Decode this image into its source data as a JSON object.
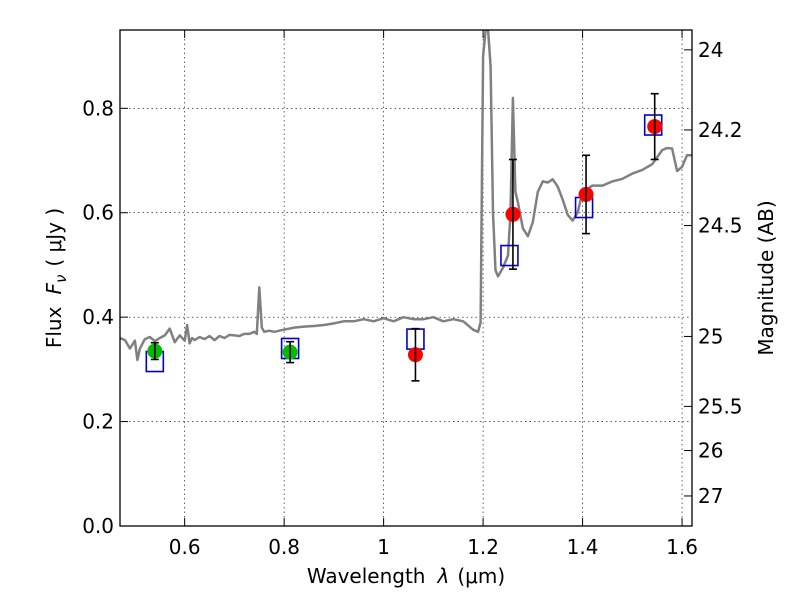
{
  "chart_data": {
    "type": "scatter",
    "title": "",
    "xlabel_text": "Wavelength",
    "xlabel_symbol": "λ",
    "xlabel_unit": "(μm)",
    "ylabel_text": "Flux",
    "ylabel_symbol": "F",
    "ylabel_subscript": "ν",
    "ylabel_unit": "( μJy )",
    "y2label": "Magnitude (AB)",
    "xlim": [
      0.47,
      1.62
    ],
    "ylim": [
      0.0,
      0.95
    ],
    "grid": true,
    "x_ticks": [
      0.6,
      0.8,
      1.0,
      1.2,
      1.4,
      1.6
    ],
    "x_tick_labels": [
      "0.6",
      "0.8",
      "1",
      "1.2",
      "1.4",
      "1.6"
    ],
    "y_ticks": [
      0.0,
      0.2,
      0.4,
      0.6,
      0.8
    ],
    "y_tick_labels": [
      "0.0",
      "0.2",
      "0.4",
      "0.6",
      "0.8"
    ],
    "mag_ticks": [
      24,
      24.2,
      24.5,
      25,
      25.5,
      26,
      27
    ],
    "mag_tick_labels": [
      "24",
      "24.2",
      "24.5",
      "25",
      "25.5",
      "26",
      "27"
    ],
    "colors": {
      "spectrum": "#808080",
      "model": "#0000cc",
      "green_obs": "#00bb00",
      "red_obs": "#ff0000",
      "errorbar": "#000000"
    },
    "series": [
      {
        "name": "template_spectrum",
        "kind": "line",
        "x": [
          0.47,
          0.48,
          0.49,
          0.5,
          0.505,
          0.51,
          0.52,
          0.53,
          0.54,
          0.55,
          0.56,
          0.57,
          0.58,
          0.59,
          0.6,
          0.605,
          0.61,
          0.615,
          0.62,
          0.63,
          0.64,
          0.65,
          0.66,
          0.67,
          0.68,
          0.69,
          0.7,
          0.71,
          0.72,
          0.73,
          0.74,
          0.745,
          0.75,
          0.755,
          0.76,
          0.77,
          0.78,
          0.8,
          0.82,
          0.84,
          0.86,
          0.88,
          0.9,
          0.92,
          0.94,
          0.96,
          0.98,
          1.0,
          1.02,
          1.04,
          1.06,
          1.08,
          1.1,
          1.12,
          1.14,
          1.16,
          1.18,
          1.19,
          1.195,
          1.2,
          1.205,
          1.21,
          1.215,
          1.22,
          1.225,
          1.23,
          1.24,
          1.25,
          1.255,
          1.26,
          1.265,
          1.27,
          1.28,
          1.29,
          1.3,
          1.31,
          1.32,
          1.33,
          1.34,
          1.35,
          1.36,
          1.37,
          1.38,
          1.39,
          1.4,
          1.42,
          1.44,
          1.46,
          1.48,
          1.5,
          1.52,
          1.54,
          1.56,
          1.57,
          1.58,
          1.59,
          1.6,
          1.61,
          1.62
        ],
        "y": [
          0.36,
          0.356,
          0.34,
          0.355,
          0.318,
          0.34,
          0.358,
          0.362,
          0.354,
          0.36,
          0.365,
          0.378,
          0.352,
          0.365,
          0.355,
          0.385,
          0.35,
          0.36,
          0.356,
          0.362,
          0.358,
          0.364,
          0.356,
          0.364,
          0.36,
          0.366,
          0.365,
          0.364,
          0.368,
          0.368,
          0.372,
          0.368,
          0.457,
          0.38,
          0.372,
          0.374,
          0.372,
          0.376,
          0.38,
          0.382,
          0.383,
          0.385,
          0.388,
          0.392,
          0.392,
          0.396,
          0.392,
          0.398,
          0.392,
          0.4,
          0.396,
          0.396,
          0.4,
          0.392,
          0.396,
          0.392,
          0.376,
          0.372,
          0.39,
          0.9,
          0.95,
          0.95,
          0.88,
          0.6,
          0.49,
          0.478,
          0.495,
          0.518,
          0.6,
          0.82,
          0.64,
          0.62,
          0.57,
          0.555,
          0.582,
          0.64,
          0.66,
          0.658,
          0.664,
          0.65,
          0.625,
          0.596,
          0.585,
          0.6,
          0.64,
          0.652,
          0.652,
          0.66,
          0.665,
          0.675,
          0.682,
          0.693,
          0.72,
          0.724,
          0.723,
          0.68,
          0.688,
          0.71,
          0.71
        ]
      },
      {
        "name": "model_boxes",
        "kind": "square",
        "x": [
          0.54,
          0.812,
          1.064,
          1.253,
          1.403,
          1.542
        ],
        "y": [
          0.315,
          0.34,
          0.358,
          0.518,
          0.61,
          0.768
        ]
      },
      {
        "name": "observed_green",
        "kind": "circle",
        "x": [
          0.54,
          0.812
        ],
        "y": [
          0.335,
          0.333
        ],
        "yerr": [
          0.016,
          0.02
        ]
      },
      {
        "name": "observed_red",
        "kind": "circle",
        "x": [
          1.064,
          1.26,
          1.407,
          1.545
        ],
        "y": [
          0.328,
          0.597,
          0.635,
          0.765
        ],
        "yerr": [
          0.05,
          0.105,
          0.075,
          0.063
        ]
      }
    ]
  }
}
